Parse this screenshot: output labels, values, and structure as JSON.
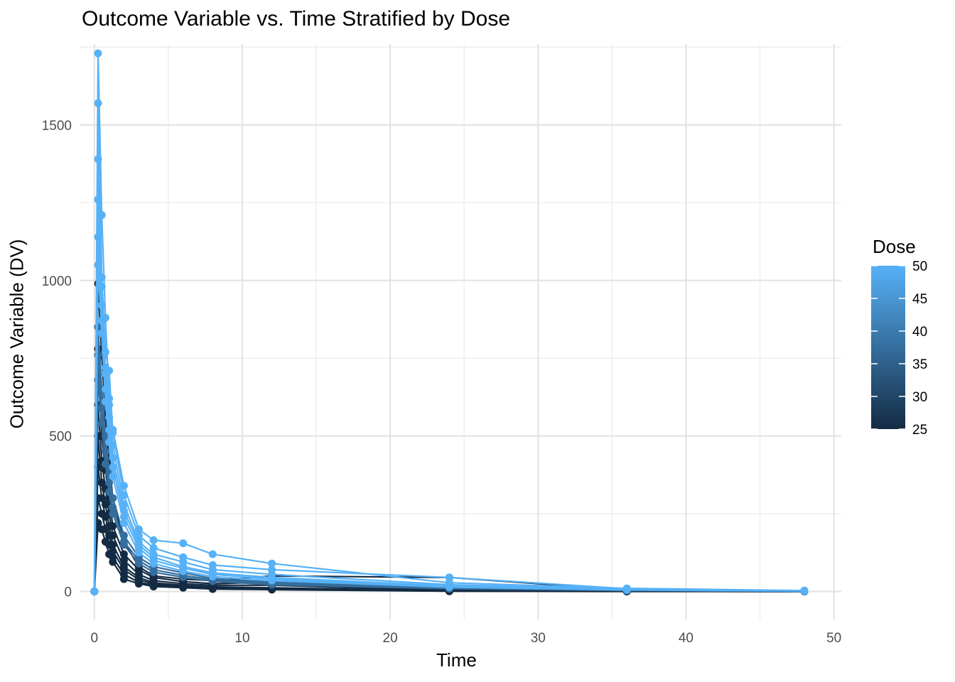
{
  "chart_data": {
    "type": "line",
    "title": "Outcome Variable vs. Time Stratified by Dose",
    "xlabel": "Time",
    "ylabel": "Outcome Variable (DV)",
    "xlim": [
      -1,
      50.5
    ],
    "ylim": [
      -90,
      1760
    ],
    "x_ticks": [
      0,
      10,
      20,
      30,
      40,
      50
    ],
    "y_ticks": [
      0,
      500,
      1000,
      1500
    ],
    "grid": true,
    "legend": {
      "title": "Dose",
      "placement": "right",
      "type": "colorbar",
      "range": [
        25,
        50
      ],
      "ticks": [
        25,
        30,
        35,
        40,
        45,
        50
      ],
      "low_color": "#132B43",
      "high_color": "#56B1F7"
    },
    "nominal_times": [
      0,
      0.25,
      0.5,
      0.75,
      1,
      1.25,
      2,
      3,
      4,
      6,
      8,
      12,
      24,
      36,
      48
    ],
    "series": [
      {
        "dose": 50,
        "x": [
          0,
          0.25,
          0.5,
          0.75,
          1,
          1.25,
          2,
          3,
          4,
          6,
          8,
          12,
          24,
          36,
          48
        ],
        "y": [
          0,
          1730,
          1210,
          880,
          620,
          520,
          340,
          200,
          165,
          155,
          120,
          90,
          28,
          10,
          3
        ]
      },
      {
        "dose": 50,
        "x": [
          0,
          0.25,
          0.5,
          0.75,
          1,
          1.25,
          2,
          3,
          4,
          6,
          8,
          12,
          24,
          36,
          48
        ],
        "y": [
          0,
          1570,
          1010,
          770,
          710,
          510,
          310,
          180,
          140,
          110,
          85,
          70,
          45,
          9,
          2
        ]
      },
      {
        "dose": 50,
        "x": [
          0,
          0.25,
          0.5,
          0.75,
          1,
          1.25,
          2,
          3,
          4,
          6,
          8,
          12,
          24,
          36,
          48
        ],
        "y": [
          0,
          1390,
          980,
          720,
          600,
          470,
          280,
          160,
          120,
          95,
          70,
          55,
          22,
          8,
          2
        ]
      },
      {
        "dose": 50,
        "x": [
          0,
          0.25,
          0.5,
          0.75,
          1,
          1.25,
          2,
          3,
          4,
          6,
          8,
          12,
          24,
          36,
          48
        ],
        "y": [
          0,
          1260,
          920,
          700,
          560,
          430,
          260,
          150,
          110,
          80,
          60,
          45,
          18,
          7,
          1
        ]
      },
      {
        "dose": 50,
        "x": [
          0,
          0.25,
          0.5,
          0.75,
          1,
          1.25,
          2,
          3,
          4,
          6,
          8,
          12,
          24,
          36,
          48
        ],
        "y": [
          0,
          1140,
          870,
          650,
          520,
          400,
          240,
          140,
          100,
          75,
          55,
          40,
          16,
          6,
          1
        ]
      },
      {
        "dose": 50,
        "x": [
          0,
          0.25,
          0.5,
          0.75,
          1,
          1.25,
          2,
          3,
          4,
          6,
          8,
          12,
          24,
          36,
          48
        ],
        "y": [
          0,
          1050,
          830,
          610,
          480,
          370,
          220,
          125,
          90,
          65,
          48,
          35,
          14,
          5,
          1
        ]
      },
      {
        "dose": 37.5,
        "x": [
          0,
          0.25,
          0.5,
          0.75,
          1,
          1.25,
          2,
          3,
          4,
          6,
          8,
          12,
          24,
          36,
          48
        ],
        "y": [
          0,
          850,
          650,
          500,
          380,
          300,
          180,
          110,
          80,
          60,
          42,
          30,
          12,
          4,
          1
        ]
      },
      {
        "dose": 37.5,
        "x": [
          0,
          0.25,
          0.5,
          0.75,
          1,
          1.25,
          2,
          3,
          4,
          6,
          8,
          12,
          24,
          36,
          48
        ],
        "y": [
          0,
          760,
          590,
          450,
          350,
          270,
          160,
          100,
          70,
          52,
          38,
          26,
          10,
          3,
          1
        ]
      },
      {
        "dose": 37.5,
        "x": [
          0,
          0.25,
          0.5,
          0.75,
          1,
          1.25,
          2,
          3,
          4,
          6,
          8,
          12,
          24,
          36,
          48
        ],
        "y": [
          0,
          680,
          540,
          410,
          320,
          250,
          150,
          90,
          62,
          46,
          33,
          22,
          9,
          3,
          1
        ]
      },
      {
        "dose": 25,
        "x": [
          0,
          0.25,
          0.5,
          0.75,
          1,
          1.25,
          2,
          3,
          4,
          6,
          8,
          12,
          24,
          36,
          48
        ],
        "y": [
          0,
          990,
          760,
          560,
          420,
          300,
          160,
          80,
          50,
          40,
          35,
          50,
          45,
          5,
          1
        ]
      },
      {
        "dose": 25,
        "x": [
          0,
          0.25,
          0.5,
          0.75,
          1,
          1.25,
          2,
          3,
          4,
          6,
          8,
          12,
          24,
          36,
          48
        ],
        "y": [
          0,
          780,
          500,
          390,
          300,
          210,
          120,
          70,
          45,
          32,
          25,
          30,
          5,
          3,
          1
        ]
      },
      {
        "dose": 25,
        "x": [
          0,
          0.25,
          0.5,
          0.75,
          1,
          1.25,
          2,
          3,
          4,
          6,
          8,
          12,
          24,
          36,
          48
        ],
        "y": [
          0,
          600,
          420,
          330,
          250,
          180,
          100,
          55,
          35,
          25,
          20,
          20,
          3,
          2,
          1
        ]
      },
      {
        "dose": 25,
        "x": [
          0,
          0.25,
          0.5,
          0.75,
          1,
          1.25,
          2,
          3,
          4,
          6,
          8,
          12,
          24,
          36,
          48
        ],
        "y": [
          0,
          500,
          350,
          280,
          210,
          150,
          80,
          45,
          28,
          20,
          15,
          12,
          2,
          1,
          0
        ]
      },
      {
        "dose": 25,
        "x": [
          0,
          0.25,
          0.5,
          0.75,
          1,
          1.25,
          2,
          3,
          4,
          6,
          8,
          12,
          24,
          36,
          48
        ],
        "y": [
          0,
          400,
          300,
          240,
          180,
          130,
          70,
          38,
          24,
          17,
          12,
          10,
          2,
          1,
          0
        ]
      },
      {
        "dose": 25,
        "x": [
          0,
          0.25,
          0.5,
          0.75,
          1,
          1.25,
          2,
          3,
          4,
          6,
          8,
          12,
          24,
          36,
          48
        ],
        "y": [
          0,
          300,
          250,
          200,
          150,
          110,
          55,
          30,
          20,
          14,
          10,
          8,
          1,
          1,
          0
        ]
      },
      {
        "dose": 25,
        "x": [
          0,
          0.25,
          0.5,
          0.75,
          1,
          1.25,
          2,
          3,
          4,
          6,
          8,
          12,
          24,
          36,
          48
        ],
        "y": [
          0,
          220,
          200,
          160,
          120,
          95,
          40,
          25,
          16,
          12,
          8,
          6,
          1,
          0,
          0
        ]
      }
    ]
  }
}
